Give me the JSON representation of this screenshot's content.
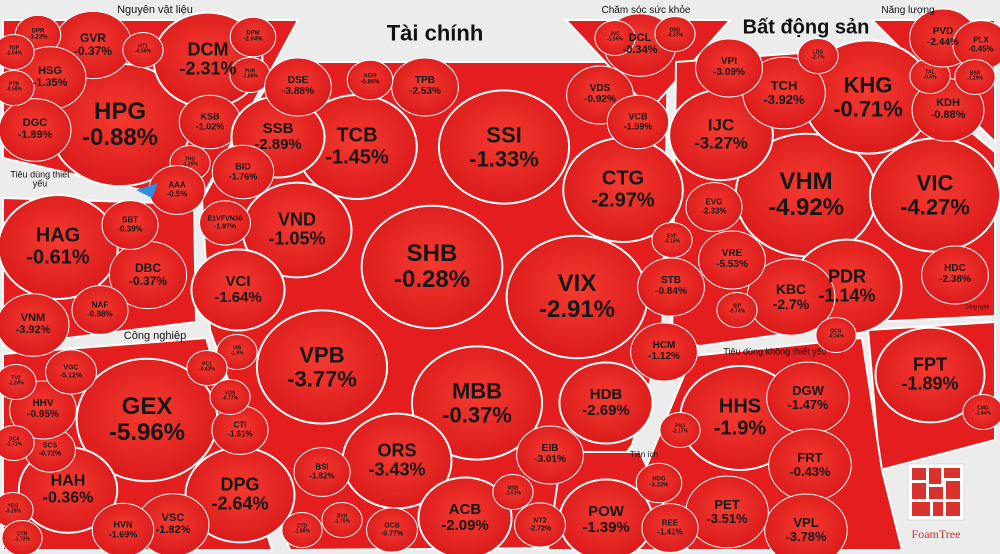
{
  "colors": {
    "negative": "#e41e1e",
    "positive": "#2f8ee0",
    "background": "#ececec",
    "text": "#161616"
  },
  "groups": [
    {
      "name": "Nguyên vật liệu"
    },
    {
      "name": "Tiêu dùng thiết yếu"
    },
    {
      "name": "Công nghiệp"
    },
    {
      "name": "Tài chính"
    },
    {
      "name": "Chăm sóc sức khỏe"
    },
    {
      "name": "Bất động sản"
    },
    {
      "name": "Năng lượng"
    },
    {
      "name": "Công nghệ"
    },
    {
      "name": "Tiêu dùng không thiết yếu"
    },
    {
      "name": "Tiện ích"
    }
  ],
  "tiles": [
    {
      "ticker": "HPG",
      "change": "-0.88%"
    },
    {
      "ticker": "DCM",
      "change": "-2.31%"
    },
    {
      "ticker": "GVR",
      "change": "-0.37%"
    },
    {
      "ticker": "DPR",
      "change": "-1.23%"
    },
    {
      "ticker": "HSG",
      "change": "-1.35%"
    },
    {
      "ticker": "DGC",
      "change": "-1.89%"
    },
    {
      "ticker": "KSB",
      "change": "-1.02%"
    },
    {
      "ticker": "DPM",
      "change": "-2.94%"
    },
    {
      "ticker": "HT1",
      "change": "-0.56%"
    },
    {
      "ticker": "PHR",
      "change": "-1.88%"
    },
    {
      "ticker": "TDP",
      "change": "-2.04%"
    },
    {
      "ticker": "PTB",
      "change": "-0.58%"
    },
    {
      "ticker": "THG",
      "change": "-1.29%"
    },
    {
      "ticker": "AAA",
      "change": "-0.5%"
    },
    {
      "ticker": "HAG",
      "change": "-0.61%"
    },
    {
      "ticker": "DBC",
      "change": "-0.37%"
    },
    {
      "ticker": "SBT",
      "change": "-0.39%"
    },
    {
      "ticker": "NAF",
      "change": "-0.88%"
    },
    {
      "ticker": "VNM",
      "change": "-3.92%"
    },
    {
      "ticker": "SHB",
      "change": "-0.28%"
    },
    {
      "ticker": "VIX",
      "change": "-2.91%"
    },
    {
      "ticker": "SSI",
      "change": "-1.33%"
    },
    {
      "ticker": "VPB",
      "change": "-3.77%"
    },
    {
      "ticker": "MBB",
      "change": "-0.37%"
    },
    {
      "ticker": "TCB",
      "change": "-1.45%"
    },
    {
      "ticker": "CTG",
      "change": "-2.97%"
    },
    {
      "ticker": "VND",
      "change": "-1.05%"
    },
    {
      "ticker": "ORS",
      "change": "-3.43%"
    },
    {
      "ticker": "HDB",
      "change": "-2.69%"
    },
    {
      "ticker": "SSB",
      "change": "-2.89%"
    },
    {
      "ticker": "VCI",
      "change": "-1.64%"
    },
    {
      "ticker": "ACB",
      "change": "-2.09%"
    },
    {
      "ticker": "DSE",
      "change": "-3.88%"
    },
    {
      "ticker": "TPB",
      "change": "-2.53%"
    },
    {
      "ticker": "VDS",
      "change": "-0.92%"
    },
    {
      "ticker": "VCB",
      "change": "-1.59%"
    },
    {
      "ticker": "STB",
      "change": "-0.84%"
    },
    {
      "ticker": "HCM",
      "change": "-1.12%"
    },
    {
      "ticker": "EIB",
      "change": "-3.01%"
    },
    {
      "ticker": "BSI",
      "change": "-1.82%"
    },
    {
      "ticker": "BID",
      "change": "-1.76%"
    },
    {
      "ticker": "E1VFVN30",
      "change": "-1.97%"
    },
    {
      "ticker": "AGR",
      "change": "-0.86%"
    },
    {
      "ticker": "EVF",
      "change": "-3.15%"
    },
    {
      "ticker": "MSB",
      "change": "-1.51%"
    },
    {
      "ticker": "BVH",
      "change": "-1.75%"
    },
    {
      "ticker": "OCB",
      "change": "-0.77%"
    },
    {
      "ticker": "VIB",
      "change": "-1.9%"
    },
    {
      "ticker": "DCL",
      "change": "-0.34%"
    },
    {
      "ticker": "JVC",
      "change": "-1.56%"
    },
    {
      "ticker": "DBD",
      "change": "-0.37%"
    },
    {
      "ticker": "VHM",
      "change": "-4.92%"
    },
    {
      "ticker": "VIC",
      "change": "-4.27%"
    },
    {
      "ticker": "KHG",
      "change": "-0.71%"
    },
    {
      "ticker": "PDR",
      "change": "-1.14%"
    },
    {
      "ticker": "IJC",
      "change": "-3.27%"
    },
    {
      "ticker": "TCH",
      "change": "-3.92%"
    },
    {
      "ticker": "KBC",
      "change": "-2.7%"
    },
    {
      "ticker": "VRE",
      "change": "-5.53%"
    },
    {
      "ticker": "KDH",
      "change": "-0.88%"
    },
    {
      "ticker": "HDC",
      "change": "-2.38%"
    },
    {
      "ticker": "VPI",
      "change": "-3.09%"
    },
    {
      "ticker": "EVG",
      "change": "-2.33%"
    },
    {
      "ticker": "SIP",
      "change": "-0.74%"
    },
    {
      "ticker": "QCG",
      "change": "-0.34%"
    },
    {
      "ticker": "LDG",
      "change": "-2.7%"
    },
    {
      "ticker": "TAL",
      "change": "-0.6%"
    },
    {
      "ticker": "PVD",
      "change": "-2.44%"
    },
    {
      "ticker": "PLX",
      "change": "-0.45%"
    },
    {
      "ticker": "BSR",
      "change": "-1.29%"
    },
    {
      "ticker": "FPT",
      "change": "-1.89%"
    },
    {
      "ticker": "CMG",
      "change": "-1.84%"
    },
    {
      "ticker": "HHS",
      "change": "-1.9%"
    },
    {
      "ticker": "DGW",
      "change": "-1.47%"
    },
    {
      "ticker": "FRT",
      "change": "-0.43%"
    },
    {
      "ticker": "VPL",
      "change": "-3.78%"
    },
    {
      "ticker": "PET",
      "change": "-3.51%"
    },
    {
      "ticker": "PNJ",
      "change": "-2.17%"
    },
    {
      "ticker": "POW",
      "change": "-1.39%"
    },
    {
      "ticker": "HDG",
      "change": "-3.22%"
    },
    {
      "ticker": "REE",
      "change": "-1.41%"
    },
    {
      "ticker": "NT2",
      "change": "-2.72%"
    },
    {
      "ticker": "GEX",
      "change": "-5.96%"
    },
    {
      "ticker": "DPG",
      "change": "-2.64%"
    },
    {
      "ticker": "HAH",
      "change": "-0.36%"
    },
    {
      "ticker": "VSC",
      "change": "-1.82%"
    },
    {
      "ticker": "HVN",
      "change": "-1.69%"
    },
    {
      "ticker": "CTI",
      "change": "-1.61%"
    },
    {
      "ticker": "SCS",
      "change": "-0.72%"
    },
    {
      "ticker": "HHV",
      "change": "-0.95%"
    },
    {
      "ticker": "VGC",
      "change": "-5.12%"
    },
    {
      "ticker": "TV2",
      "change": "-1.24%"
    },
    {
      "ticker": "DC4",
      "change": "-1.71%"
    },
    {
      "ticker": "YEG",
      "change": "-3.28%"
    },
    {
      "ticker": "CTR",
      "change": "-1.72%"
    },
    {
      "ticker": "VOS",
      "change": "-0.77%"
    },
    {
      "ticker": "PC1",
      "change": "-0.43%"
    },
    {
      "ticker": "CTD",
      "change": "-1.88%"
    }
  ],
  "logo": {
    "text": "FoamTree"
  }
}
